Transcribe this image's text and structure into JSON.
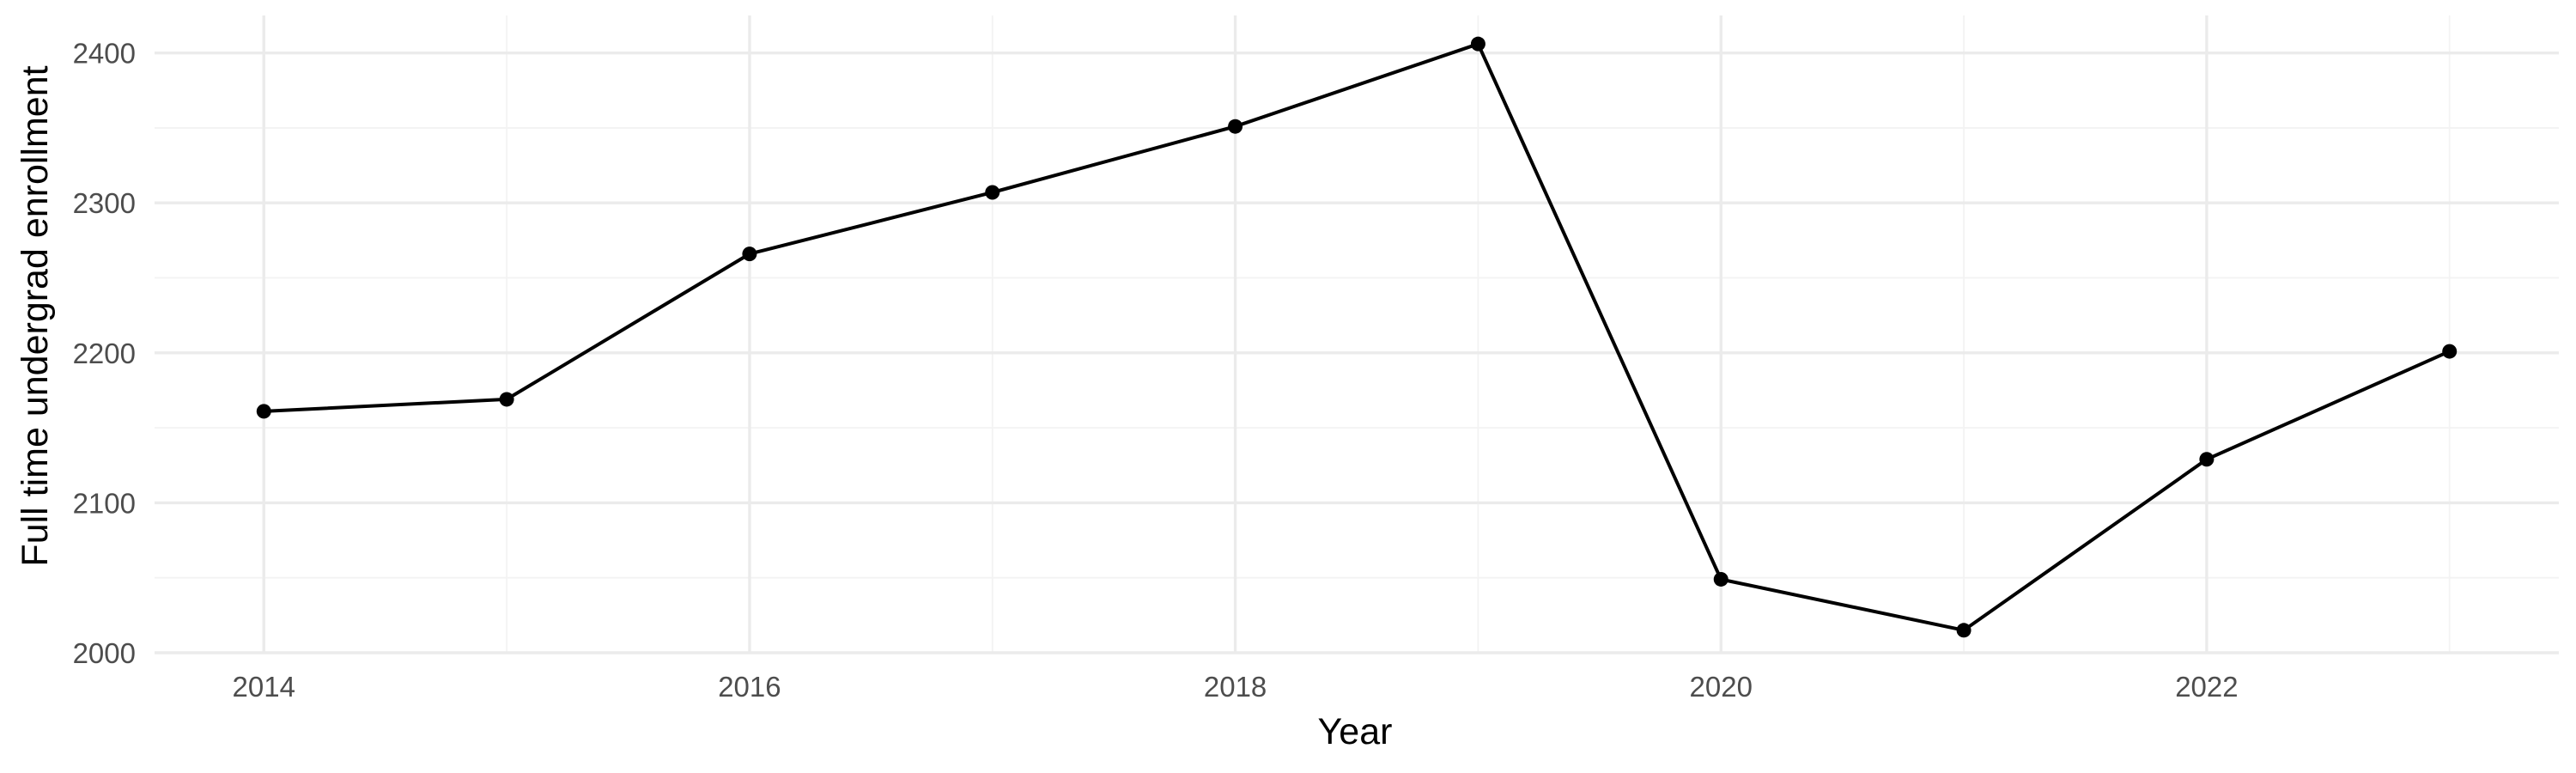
{
  "chart_data": {
    "type": "line",
    "title": "",
    "xlabel": "Year",
    "ylabel": "Full time undergrad enrollment",
    "x": [
      2014,
      2015,
      2016,
      2017,
      2018,
      2019,
      2020,
      2021,
      2022,
      2023
    ],
    "series": [
      {
        "values": [
          2161,
          2169,
          2266,
          2307,
          2351,
          2406,
          2049,
          2015,
          2129,
          2201
        ]
      }
    ],
    "x_ticks": [
      2014,
      2016,
      2018,
      2020,
      2022
    ],
    "x_tick_labels": [
      "2014",
      "2016",
      "2018",
      "2020",
      "2022"
    ],
    "y_ticks": [
      2000,
      2100,
      2200,
      2300,
      2400
    ],
    "y_tick_labels": [
      "2000",
      "2100",
      "2200",
      "2300",
      "2400"
    ],
    "xlim": [
      2013.55,
      2023.45
    ],
    "ylim": [
      2000,
      2425
    ],
    "grid": true,
    "legend": "none",
    "colors": {
      "line": "#000000",
      "grid": "#ebebeb",
      "background": "#ffffff"
    }
  }
}
